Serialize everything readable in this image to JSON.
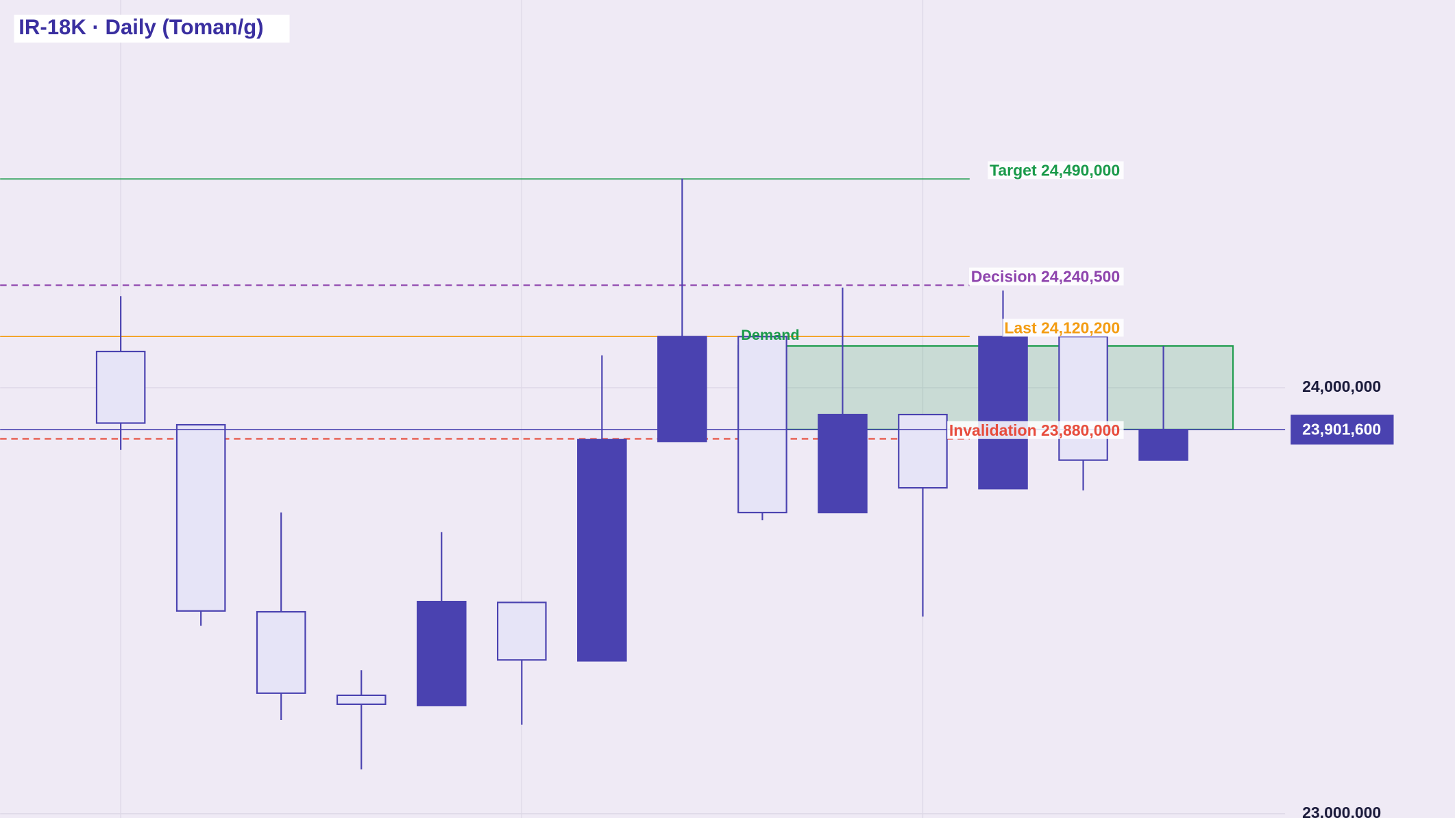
{
  "chart_data": {
    "type": "candlestick",
    "title": "IR-18K · Daily (Toman/g)",
    "ylim": [
      22990000,
      24910000
    ],
    "yticks": [
      {
        "value": 23000000,
        "label": "23,000,000"
      },
      {
        "value": 24000000,
        "label": "24,000,000"
      }
    ],
    "up_color": "#4a42b0",
    "down_color": "#e6e4f7",
    "grid": true,
    "open": [
      24085000,
      23913000,
      23474000,
      23278000,
      23254000,
      23496000,
      23359000,
      23874000,
      24120000,
      23707000,
      23937000,
      23763000,
      24120000,
      23830000
    ],
    "high": [
      24215000,
      23913000,
      23707000,
      23337000,
      23661000,
      23496000,
      24076000,
      24491000,
      24120000,
      24235000,
      23937000,
      24228000,
      24120000,
      24098000
    ],
    "low": [
      23854000,
      23441000,
      23220000,
      23104000,
      23254000,
      23209000,
      23359000,
      23874000,
      23689000,
      23707000,
      23463000,
      23763000,
      23759000,
      23830000
    ],
    "close": [
      23917000,
      23476000,
      23283000,
      23257000,
      23498000,
      23361000,
      23878000,
      24120000,
      23707000,
      23937000,
      23765000,
      24120000,
      23830000,
      23901600
    ],
    "levels": [
      {
        "label": "Target 24,490,000",
        "value": 24490000,
        "color": "#1a9a4a",
        "dashed": false
      },
      {
        "label": "Decision 24,240,500",
        "value": 24240500,
        "color": "#8e44ad",
        "dashed": true
      },
      {
        "label": "Last 24,120,200",
        "value": 24120200,
        "color": "#f39c12",
        "dashed": false
      },
      {
        "label": "Invalidation 23,880,000",
        "value": 23880000,
        "color": "#e74c3c",
        "dashed": true
      }
    ],
    "last_price": {
      "value": 23901600,
      "label": "23,901,600",
      "color": "#4a42b0"
    },
    "zone": {
      "label": "Demand",
      "low": 23902000,
      "high": 24098000,
      "from_candle": 8,
      "color": "#1a9a4a"
    }
  }
}
